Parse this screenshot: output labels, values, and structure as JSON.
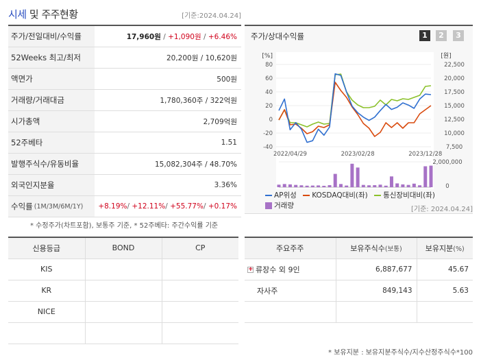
{
  "header": {
    "title_main": "시세",
    "title_rest": " 및 주주현황",
    "date": "[기준:2024.04.24]"
  },
  "summary": [
    {
      "key": "주가/전일대비/수익률",
      "price": "17,960원",
      "change": "+1,090원",
      "rate": "+6.46%"
    },
    {
      "key": "52Weeks 최고/최저",
      "value": "20,200원 / 10,620원"
    },
    {
      "key": "액면가",
      "value": "500원"
    },
    {
      "key": "거래량/거래대금",
      "value": "1,780,360주 / 322억원"
    },
    {
      "key": "시가총액",
      "value": "2,709억원"
    },
    {
      "key": "52주베타",
      "value": "1.51"
    },
    {
      "key": "발행주식수/유동비율",
      "value": "15,082,304주 / 48.70%"
    },
    {
      "key": "외국인지분율",
      "value": "3.36%"
    },
    {
      "key": "수익률",
      "key_sub": "(1M/3M/6M/1Y)",
      "r1": "+8.19%",
      "r2": "+12.11%",
      "r3": "+55.77%",
      "r4": "+0.17%"
    }
  ],
  "summary_note": "* 수정주가(차트포함), 보통주 기준, * 52주베타: 주간수익률 기준",
  "chart_panel": {
    "title": "주가/상대수익률",
    "buttons": [
      "1",
      "2",
      "3"
    ],
    "date": "[기준: 2024.04.24]"
  },
  "chart_data": {
    "type": "line",
    "left_axis": {
      "unit": "[%]",
      "ticks": [
        "80",
        "60",
        "40",
        "20",
        "0",
        "-20",
        "-40"
      ],
      "range": [
        -40,
        80
      ]
    },
    "right_axis": {
      "unit": "[원]",
      "ticks": [
        "22,500",
        "20,000",
        "17,500",
        "15,000",
        "12,500",
        "10,000",
        "7,500"
      ],
      "range": [
        7500,
        22500
      ]
    },
    "volume_axis": {
      "ticks": [
        "2,000,000",
        "0"
      ],
      "range": [
        0,
        2000000
      ]
    },
    "x_tick_labels": [
      "2022/04/29",
      "2023/02/28",
      "2023/12/28"
    ],
    "x_tick_index": [
      2,
      14,
      26
    ],
    "series": [
      {
        "name": "AP위성",
        "axis": "right",
        "color": "#2f6fd0",
        "values": [
          14100,
          16200,
          10600,
          11900,
          10700,
          8300,
          8600,
          10700,
          9600,
          11100,
          20800,
          20500,
          17500,
          14900,
          13700,
          12900,
          12300,
          12900,
          14100,
          15200,
          14300,
          14700,
          15500,
          15100,
          14500,
          16200,
          17100,
          17000
        ]
      },
      {
        "name": "KOSDAQ대비(좌)",
        "axis": "left",
        "color": "#d94a0d",
        "values": [
          -1,
          14,
          -8,
          -7,
          -13,
          -21,
          -18,
          -10,
          -12,
          -8,
          54,
          42,
          32,
          18,
          7,
          -6,
          -13,
          -25,
          -19,
          -5,
          -12,
          -5,
          -13,
          -5,
          -5,
          8,
          14,
          20
        ]
      },
      {
        "name": "통신장비대비(좌)",
        "axis": "left",
        "color": "#8bc12a",
        "values": [
          -1,
          14,
          -5,
          -5,
          -8,
          -11,
          -7,
          -4,
          -7,
          -6,
          65,
          66,
          40,
          28,
          21,
          17,
          17,
          19,
          28,
          21,
          29,
          27,
          30,
          29,
          32,
          35,
          48,
          49
        ]
      },
      {
        "name": "거래량",
        "axis": "volume",
        "color": "#a772c6",
        "kind": "bar",
        "values": [
          200000,
          250000,
          220000,
          180000,
          150000,
          120000,
          130000,
          140000,
          110000,
          160000,
          1050000,
          250000,
          130000,
          1850000,
          1550000,
          180000,
          150000,
          160000,
          200000,
          120000,
          850000,
          300000,
          220000,
          180000,
          280000,
          150000,
          1650000,
          1700000
        ]
      }
    ]
  },
  "credit": {
    "headers": [
      "신용등급",
      "BOND",
      "CP"
    ],
    "rows": [
      [
        "KIS",
        "",
        ""
      ],
      [
        "KR",
        "",
        ""
      ],
      [
        "NICE",
        "",
        ""
      ],
      [
        "",
        "",
        ""
      ]
    ]
  },
  "holders": {
    "headers": [
      "주요주주",
      "보유주식수",
      "(보통)",
      "보유지분",
      "(%)"
    ],
    "rows": [
      {
        "name": "류장수 외 9인",
        "shares": "6,887,677",
        "pct": "45.67",
        "expandable": true
      },
      {
        "name": "자사주",
        "shares": "849,143",
        "pct": "5.63",
        "expandable": false
      },
      {
        "name": "",
        "shares": "",
        "pct": "",
        "expandable": false
      }
    ],
    "note": "* 보유지분 : 보유지분주식수/지수산정주식수*100"
  }
}
